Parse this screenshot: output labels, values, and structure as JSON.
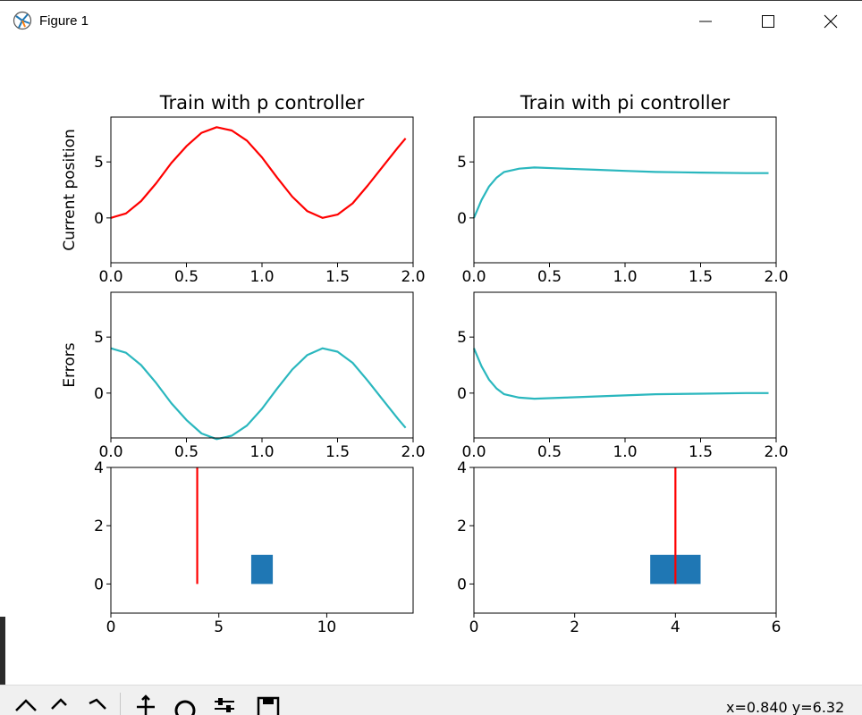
{
  "window": {
    "title": "Figure 1"
  },
  "toolbar": {
    "coords_text": "x=0.840 y=6.32"
  },
  "colors": {
    "red": "#ff0000",
    "teal": "#2ab7be",
    "block": "#1f77b4"
  },
  "chart_data": [
    {
      "type": "line",
      "title": "Train with p controller",
      "ylabel": "Current position",
      "xlim": [
        0,
        2
      ],
      "ylim": [
        -4,
        9
      ],
      "xticks": [
        "0.0",
        "0.5",
        "1.0",
        "1.5",
        "2.0"
      ],
      "yticks": [
        "0",
        "5"
      ],
      "series": [
        {
          "color": "#ff0000",
          "points": [
            [
              0,
              0
            ],
            [
              0.1,
              0.4
            ],
            [
              0.2,
              1.5
            ],
            [
              0.3,
              3.1
            ],
            [
              0.4,
              4.9
            ],
            [
              0.5,
              6.4
            ],
            [
              0.6,
              7.6
            ],
            [
              0.7,
              8.1
            ],
            [
              0.8,
              7.8
            ],
            [
              0.9,
              6.9
            ],
            [
              1.0,
              5.4
            ],
            [
              1.1,
              3.6
            ],
            [
              1.2,
              1.9
            ],
            [
              1.3,
              0.6
            ],
            [
              1.4,
              0
            ],
            [
              1.5,
              0.3
            ],
            [
              1.6,
              1.3
            ],
            [
              1.7,
              2.9
            ],
            [
              1.8,
              4.6
            ],
            [
              1.9,
              6.3
            ],
            [
              1.95,
              7.1
            ]
          ]
        }
      ]
    },
    {
      "type": "line",
      "title": "Train with pi controller",
      "ylabel": "",
      "xlim": [
        0,
        2
      ],
      "ylim": [
        -4,
        9
      ],
      "xticks": [
        "0.0",
        "0.5",
        "1.0",
        "1.5",
        "2.0"
      ],
      "yticks": [
        "0",
        "5"
      ],
      "series": [
        {
          "color": "#2ab7be",
          "points": [
            [
              0,
              0
            ],
            [
              0.05,
              1.6
            ],
            [
              0.1,
              2.8
            ],
            [
              0.15,
              3.6
            ],
            [
              0.2,
              4.1
            ],
            [
              0.3,
              4.4
            ],
            [
              0.4,
              4.5
            ],
            [
              0.6,
              4.4
            ],
            [
              0.8,
              4.3
            ],
            [
              1.0,
              4.2
            ],
            [
              1.2,
              4.1
            ],
            [
              1.5,
              4.05
            ],
            [
              1.8,
              4.0
            ],
            [
              1.95,
              4.0
            ]
          ]
        }
      ]
    },
    {
      "type": "line",
      "title": "",
      "ylabel": "Errors",
      "xlim": [
        0,
        2
      ],
      "ylim": [
        -4,
        9
      ],
      "xticks": [
        "0.0",
        "0.5",
        "1.0",
        "1.5",
        "2.0"
      ],
      "yticks": [
        "0",
        "5"
      ],
      "series": [
        {
          "color": "#2ab7be",
          "points": [
            [
              0,
              4
            ],
            [
              0.1,
              3.6
            ],
            [
              0.2,
              2.5
            ],
            [
              0.3,
              0.9
            ],
            [
              0.4,
              -0.9
            ],
            [
              0.5,
              -2.4
            ],
            [
              0.6,
              -3.6
            ],
            [
              0.7,
              -4.1
            ],
            [
              0.8,
              -3.8
            ],
            [
              0.9,
              -2.9
            ],
            [
              1.0,
              -1.4
            ],
            [
              1.1,
              0.4
            ],
            [
              1.2,
              2.1
            ],
            [
              1.3,
              3.4
            ],
            [
              1.4,
              4
            ],
            [
              1.5,
              3.7
            ],
            [
              1.6,
              2.7
            ],
            [
              1.7,
              1.1
            ],
            [
              1.8,
              -0.6
            ],
            [
              1.9,
              -2.3
            ],
            [
              1.95,
              -3.1
            ]
          ]
        }
      ]
    },
    {
      "type": "line",
      "title": "",
      "ylabel": "",
      "xlim": [
        0,
        2
      ],
      "ylim": [
        -4,
        9
      ],
      "xticks": [
        "0.0",
        "0.5",
        "1.0",
        "1.5",
        "2.0"
      ],
      "yticks": [
        "0",
        "5"
      ],
      "series": [
        {
          "color": "#2ab7be",
          "points": [
            [
              0,
              4
            ],
            [
              0.05,
              2.4
            ],
            [
              0.1,
              1.2
            ],
            [
              0.15,
              0.4
            ],
            [
              0.2,
              -0.1
            ],
            [
              0.3,
              -0.4
            ],
            [
              0.4,
              -0.5
            ],
            [
              0.6,
              -0.4
            ],
            [
              0.8,
              -0.3
            ],
            [
              1.0,
              -0.2
            ],
            [
              1.2,
              -0.1
            ],
            [
              1.5,
              -0.05
            ],
            [
              1.8,
              0
            ],
            [
              1.95,
              0
            ]
          ]
        }
      ]
    },
    {
      "type": "scene",
      "title": "",
      "ylabel": "",
      "xlim": [
        0,
        14
      ],
      "ylim": [
        -1,
        4
      ],
      "xticks": [
        "0",
        "5",
        "10"
      ],
      "yticks": [
        "0",
        "2",
        "4"
      ],
      "vline": {
        "x": 4.0,
        "y0": 0,
        "y1": 4,
        "color": "#ff0000"
      },
      "rect": {
        "x0": 6.5,
        "x1": 7.5,
        "y0": 0,
        "y1": 1,
        "color": "#1f77b4"
      }
    },
    {
      "type": "scene",
      "title": "",
      "ylabel": "",
      "xlim": [
        0,
        6
      ],
      "ylim": [
        -1,
        4
      ],
      "xticks": [
        "0",
        "2",
        "4",
        "6"
      ],
      "yticks": [
        "0",
        "2",
        "4"
      ],
      "vline": {
        "x": 4.0,
        "y0": 0,
        "y1": 4,
        "color": "#ff0000"
      },
      "rect": {
        "x0": 3.5,
        "x1": 4.5,
        "y0": 0,
        "y1": 1,
        "color": "#1f77b4"
      }
    }
  ]
}
